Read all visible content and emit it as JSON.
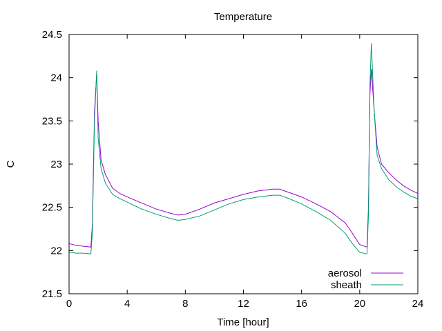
{
  "chart_data": {
    "type": "line",
    "title": "Temperature",
    "xlabel": "Time [hour]",
    "ylabel": "C",
    "xlim": [
      0,
      24
    ],
    "ylim": [
      21.5,
      24.5
    ],
    "x_ticks": [
      0,
      4,
      8,
      12,
      16,
      20,
      24
    ],
    "x_tick_labels": [
      "0",
      "4",
      "8",
      "12",
      "16",
      "20",
      "24"
    ],
    "y_ticks": [
      21.5,
      22,
      22.5,
      23,
      23.5,
      24,
      24.5
    ],
    "y_tick_labels": [
      "21.5",
      "22",
      "22.5",
      "23",
      "23.5",
      "24",
      "24.5"
    ],
    "grid": false,
    "legend_position": "bottom-right",
    "series": [
      {
        "name": "aerosol",
        "color": "#9400d3",
        "x": [
          0,
          0.5,
          1.0,
          1.5,
          1.6,
          1.75,
          1.9,
          2.0,
          2.2,
          2.5,
          3.0,
          3.5,
          4,
          5,
          6,
          7,
          7.5,
          8,
          9,
          10,
          11,
          12,
          13,
          14,
          14.5,
          15,
          16,
          17,
          18,
          19,
          19.5,
          20,
          20.5,
          20.6,
          20.7,
          20.8,
          21.0,
          21.2,
          21.5,
          22,
          22.5,
          23,
          23.5,
          24
        ],
        "y": [
          22.08,
          22.06,
          22.05,
          22.04,
          22.3,
          23.6,
          24.05,
          23.5,
          23.05,
          22.88,
          22.72,
          22.66,
          22.62,
          22.55,
          22.48,
          22.43,
          22.41,
          22.42,
          22.48,
          22.55,
          22.6,
          22.65,
          22.69,
          22.71,
          22.71,
          22.68,
          22.62,
          22.54,
          22.45,
          22.32,
          22.2,
          22.07,
          22.04,
          22.5,
          23.8,
          24.1,
          23.6,
          23.2,
          23.0,
          22.9,
          22.82,
          22.75,
          22.7,
          22.66
        ]
      },
      {
        "name": "sheath",
        "color": "#009e73",
        "x": [
          0,
          0.5,
          1.0,
          1.5,
          1.6,
          1.75,
          1.9,
          2.0,
          2.2,
          2.5,
          3.0,
          3.5,
          4,
          5,
          6,
          7,
          7.5,
          8,
          9,
          10,
          11,
          12,
          13,
          14,
          14.5,
          15,
          16,
          17,
          18,
          19,
          19.5,
          20,
          20.5,
          20.6,
          20.7,
          20.8,
          21.0,
          21.2,
          21.5,
          22,
          22.5,
          23,
          23.5,
          24
        ],
        "y": [
          21.98,
          21.97,
          21.97,
          21.96,
          22.2,
          23.5,
          24.08,
          23.3,
          22.95,
          22.78,
          22.65,
          22.6,
          22.56,
          22.48,
          22.42,
          22.37,
          22.35,
          22.36,
          22.4,
          22.47,
          22.54,
          22.59,
          22.62,
          22.64,
          22.64,
          22.61,
          22.54,
          22.45,
          22.35,
          22.2,
          22.08,
          21.98,
          21.96,
          22.4,
          23.9,
          24.4,
          23.6,
          23.1,
          22.95,
          22.82,
          22.74,
          22.68,
          22.63,
          22.6
        ]
      }
    ]
  }
}
